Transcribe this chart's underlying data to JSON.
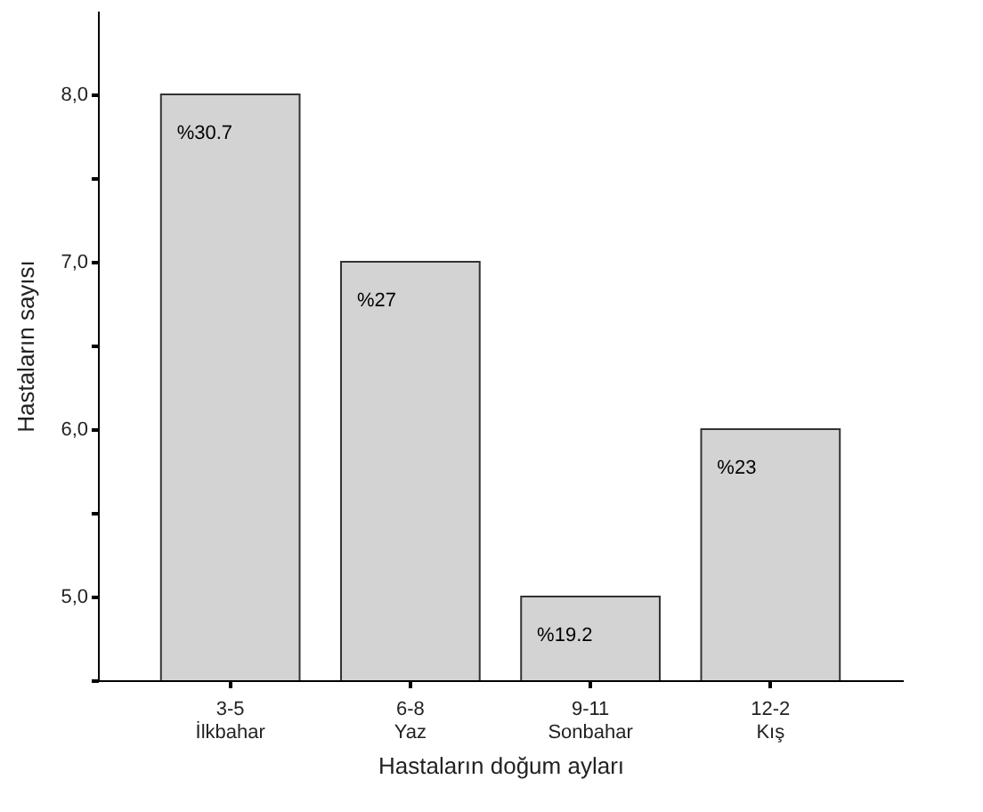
{
  "chart_data": {
    "type": "bar",
    "xlabel": "Hastaların doğum ayları",
    "ylabel": "Hastaların sayısı",
    "categories": [
      "3-5\nİlkbahar",
      "6-8\nYaz",
      "9-11\nSonbahar",
      "12-2\nKış"
    ],
    "values": [
      8,
      7,
      5,
      6
    ],
    "annotations": [
      {
        "text": "%30.7",
        "x": "3-5\nİlkbahar",
        "y": 8
      },
      {
        "text": "%27",
        "x": "6-8\nYaz",
        "y": 7
      },
      {
        "text": "%19.2",
        "x": "9-11\nSonbahar",
        "y": 5
      },
      {
        "text": "%23",
        "x": "12-2\nKış",
        "y": 6
      }
    ],
    "color": "#d3d3d3",
    "ylim": [
      4.5,
      8.5
    ],
    "yticks": [
      {
        "value": 4.5,
        "label": null
      },
      {
        "value": 5,
        "label": "5,0"
      },
      {
        "value": 5.5,
        "label": null
      },
      {
        "value": 6,
        "label": "6,0"
      },
      {
        "value": 6.5,
        "label": null
      },
      {
        "value": 7,
        "label": "7,0"
      },
      {
        "value": 7.5,
        "label": null
      },
      {
        "value": 8,
        "label": "8,0"
      }
    ],
    "grid": false
  }
}
